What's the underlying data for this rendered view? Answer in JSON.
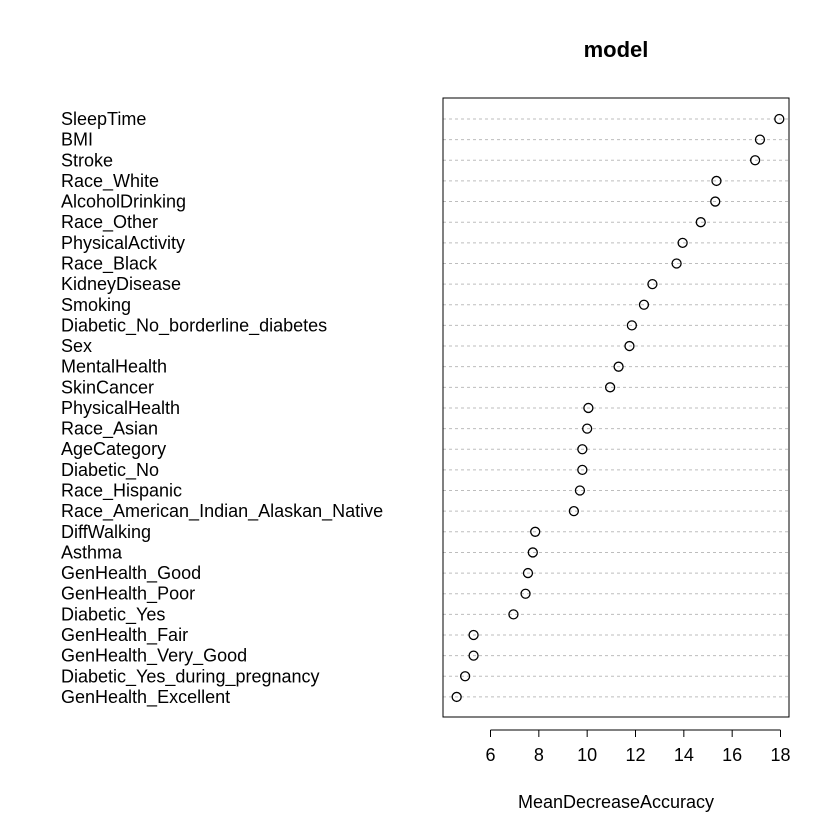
{
  "chart_data": {
    "type": "scatter",
    "title": "model",
    "xlabel": "MeanDecreaseAccuracy",
    "ylabel": "",
    "xlim": [
      4.3,
      18.5
    ],
    "xticks": [
      6,
      8,
      10,
      12,
      14,
      16,
      18
    ],
    "grid": "horizontal dotted",
    "categories": [
      "SleepTime",
      "BMI",
      "Stroke",
      "Race_White",
      "AlcoholDrinking",
      "Race_Other",
      "PhysicalActivity",
      "Race_Black",
      "KidneyDisease",
      "Smoking",
      "Diabetic_No_borderline_diabetes",
      "Sex",
      "MentalHealth",
      "SkinCancer",
      "PhysicalHealth",
      "Race_Asian",
      "AgeCategory",
      "Diabetic_No",
      "Race_Hispanic",
      "Race_American_Indian_Alaskan_Native",
      "DiffWalking",
      "Asthma",
      "GenHealth_Good",
      "GenHealth_Poor",
      "Diabetic_Yes",
      "GenHealth_Fair",
      "GenHealth_Very_Good",
      "Diabetic_Yes_during_pregnancy",
      "GenHealth_Excellent"
    ],
    "values": [
      17.95,
      17.15,
      16.95,
      15.35,
      15.3,
      14.7,
      13.95,
      13.7,
      12.7,
      12.35,
      11.85,
      11.75,
      11.3,
      10.95,
      10.05,
      10.0,
      9.8,
      9.8,
      9.7,
      9.45,
      7.85,
      7.75,
      7.55,
      7.45,
      6.95,
      5.3,
      5.3,
      4.95,
      4.6
    ]
  }
}
